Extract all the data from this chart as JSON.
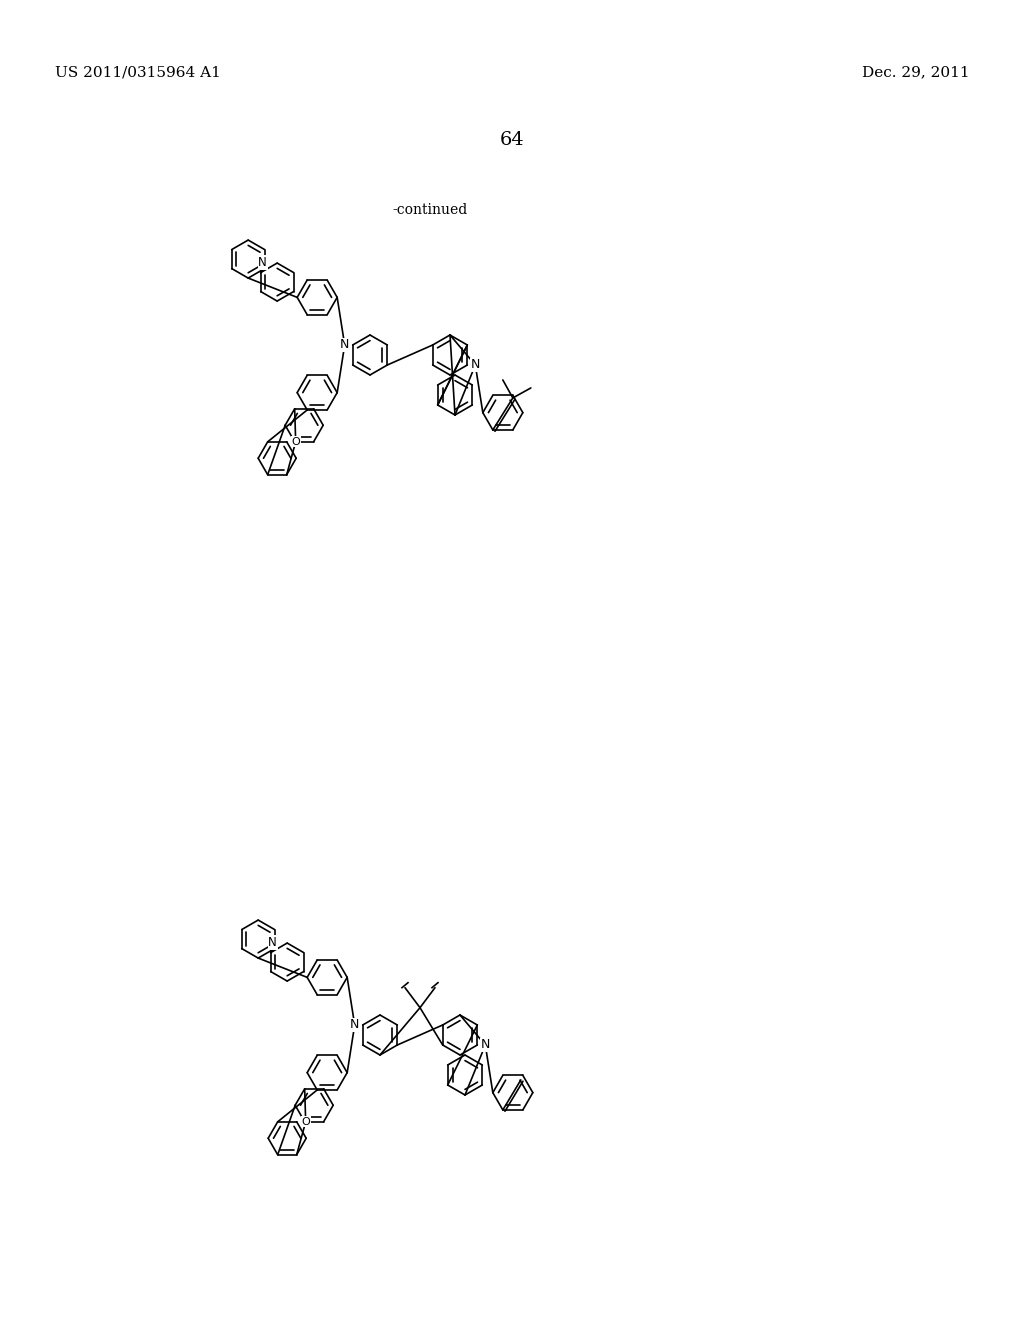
{
  "background_color": "#ffffff",
  "header_left": "US 2011/0315964 A1",
  "header_right": "Dec. 29, 2011",
  "page_number": "64",
  "continued_text": "-continued",
  "fig_width": 10.24,
  "fig_height": 13.2,
  "dpi": 100,
  "line_color": "#000000",
  "line_width": 1.2
}
